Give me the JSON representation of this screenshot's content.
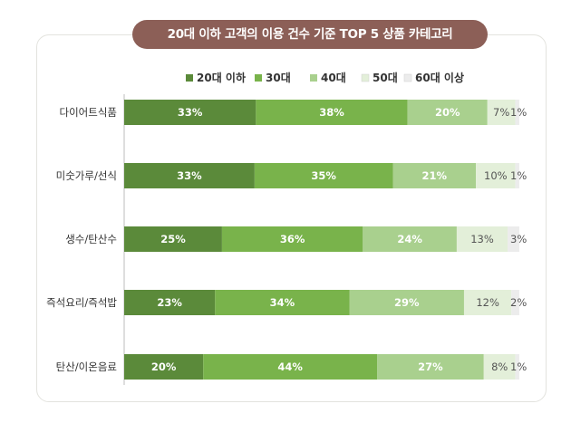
{
  "title": "20대 이하 고객의 이용 건수 기준 TOP 5 상품 카테고리",
  "chart_data": {
    "type": "bar",
    "orientation": "horizontal",
    "stacked": true,
    "normalized_percent": true,
    "title": "20대 이하 고객의 이용 건수 기준 TOP 5 상품 카테고리",
    "legend_position": "top",
    "categories": [
      "다이어트식품",
      "미숫가루/선식",
      "생수/탄산수",
      "즉석요리/즉석밥",
      "탄산/이온음료"
    ],
    "series": [
      {
        "name": "20대 이하",
        "color": "#5b8a3a",
        "label_color": "#ffffff",
        "values": [
          33,
          33,
          25,
          23,
          20
        ]
      },
      {
        "name": "30대",
        "color": "#79b34b",
        "label_color": "#ffffff",
        "values": [
          38,
          35,
          36,
          34,
          44
        ]
      },
      {
        "name": "40대",
        "color": "#a9d08e",
        "label_color": "#ffffff",
        "values": [
          20,
          21,
          24,
          29,
          27
        ]
      },
      {
        "name": "50대",
        "color": "#e3efd9",
        "label_color": "#555555",
        "values": [
          7,
          10,
          13,
          12,
          8
        ]
      },
      {
        "name": "60대 이상",
        "color": "#ececec",
        "label_color": "#555555",
        "values": [
          1,
          1,
          3,
          2,
          1
        ]
      }
    ],
    "grid": false
  }
}
